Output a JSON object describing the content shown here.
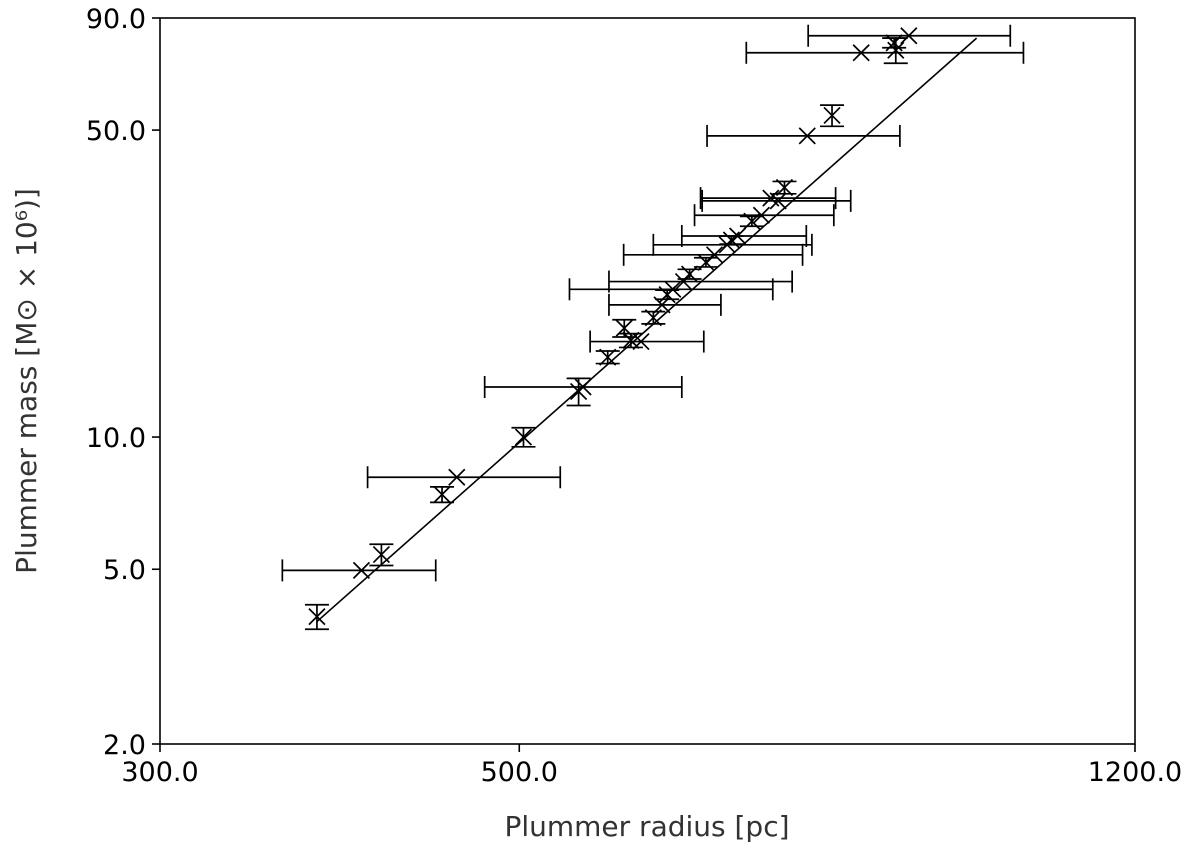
{
  "chart_data": {
    "type": "scatter",
    "title": "",
    "xlabel": "Plummer radius [pc]",
    "ylabel": "Plummer mass [M⊙ × 10⁶)]",
    "xscale": "log",
    "yscale": "log",
    "xlim": [
      300.0,
      1200.0
    ],
    "ylim": [
      2.0,
      90.0
    ],
    "xticks": [
      {
        "value": 300.0,
        "label": "300.0"
      },
      {
        "value": 500.0,
        "label": "500.0"
      },
      {
        "value": 1200.0,
        "label": "1200.0"
      }
    ],
    "yticks": [
      {
        "value": 2.0,
        "label": "2.0"
      },
      {
        "value": 5.0,
        "label": "5.0"
      },
      {
        "value": 10.0,
        "label": "10.0"
      },
      {
        "value": 50.0,
        "label": "50.0"
      },
      {
        "value": 90.0,
        "label": "90.0"
      }
    ],
    "grid": false,
    "legend": "none",
    "fit_line": {
      "x": [
        375.0,
        958.0
      ],
      "y": [
        3.8,
        81.0
      ]
    },
    "points": [
      {
        "x": 375.0,
        "y": 3.9,
        "yerr": 0.25
      },
      {
        "x": 399.5,
        "y": 4.97,
        "xerr_low": 42.5,
        "xerr_high": 44.5
      },
      {
        "x": 411.0,
        "y": 5.4,
        "yerr": 0.3
      },
      {
        "x": 448.0,
        "y": 7.4,
        "yerr": 0.3
      },
      {
        "x": 457.5,
        "y": 8.1,
        "xerr_low": 54.5,
        "xerr_high": 72.5
      },
      {
        "x": 503.0,
        "y": 10.0,
        "yerr": 0.5
      },
      {
        "x": 544.0,
        "y": 12.7,
        "yerr": 0.9
      },
      {
        "x": 547.5,
        "y": 13.0,
        "xerr_low": 71.5,
        "xerr_high": 82.5
      },
      {
        "x": 567.0,
        "y": 15.2,
        "yerr": 0.5
      },
      {
        "x": 586.0,
        "y": 16.6,
        "yerr": 0.6
      },
      {
        "x": 580.5,
        "y": 17.7,
        "yerr": 0.8
      },
      {
        "x": 594.5,
        "y": 16.5,
        "xerr_low": 41.5,
        "xerr_high": 55.5
      },
      {
        "x": 605.0,
        "y": 18.7,
        "yerr": 0.6
      },
      {
        "x": 612.5,
        "y": 20.0,
        "xerr_low": 44.5,
        "xerr_high": 53.5
      },
      {
        "x": 617.0,
        "y": 21.1,
        "yerr": 0.5
      },
      {
        "x": 622.0,
        "y": 21.7,
        "xerr_low": 85.0,
        "xerr_high": 95.0
      },
      {
        "x": 631.5,
        "y": 22.6,
        "xerr_low": 63.5,
        "xerr_high": 105.5
      },
      {
        "x": 637.0,
        "y": 23.5,
        "yerr": 0.6
      },
      {
        "x": 652.0,
        "y": 25.0,
        "yerr": 0.6
      },
      {
        "x": 660.0,
        "y": 26.0,
        "xerr_low": 80.0,
        "xerr_high": 88.0
      },
      {
        "x": 672.0,
        "y": 27.4,
        "xerr_low": 67.0,
        "xerr_high": 86.0
      },
      {
        "x": 676.0,
        "y": 28.1,
        "yerr": 0.6
      },
      {
        "x": 682.0,
        "y": 28.7,
        "xerr_low": 52.0,
        "xerr_high": 70.0
      },
      {
        "x": 696.0,
        "y": 31.0,
        "yerr": 0.8
      },
      {
        "x": 705.5,
        "y": 32.0,
        "xerr_low": 64.0,
        "xerr_high": 76.5
      },
      {
        "x": 715.0,
        "y": 35.0,
        "xerr_low": 68.0,
        "xerr_high": 69.0
      },
      {
        "x": 722.5,
        "y": 34.5,
        "xerr_low": 74.0,
        "xerr_high": 78.5
      },
      {
        "x": 729.0,
        "y": 37.0,
        "yerr": 1.2
      },
      {
        "x": 753.0,
        "y": 48.5,
        "xerr_low": 100.0,
        "xerr_high": 106.0
      },
      {
        "x": 780.0,
        "y": 54.0,
        "yerr": 3.0
      },
      {
        "x": 813.0,
        "y": 75.0,
        "xerr_low": 122.5,
        "xerr_high": 211.0
      },
      {
        "x": 854.0,
        "y": 76.0,
        "yerr": 5.0
      },
      {
        "x": 870.0,
        "y": 82.0,
        "xerr_low": 116.0,
        "xerr_high": 135.0
      },
      {
        "x": 852.0,
        "y": 79.0,
        "yerr": 2.0
      }
    ]
  }
}
